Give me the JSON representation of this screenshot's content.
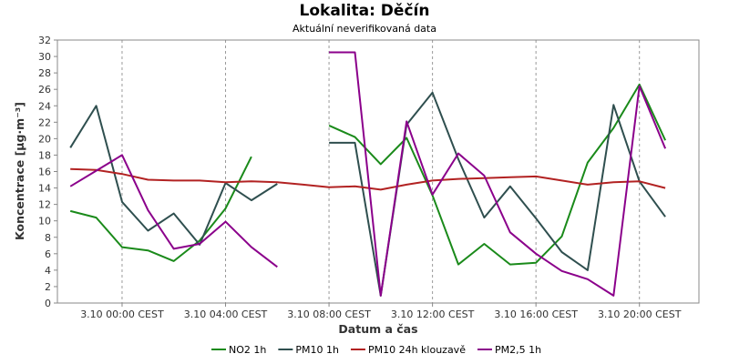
{
  "chart_data": {
    "type": "line",
    "title": "Lokalita: Děčín",
    "subtitle": "Aktuální neverifikovaná data",
    "xlabel": "Datum a čas",
    "ylabel": "Koncentrace [µg·m⁻³]",
    "ylim": [
      0,
      32
    ],
    "yticks": [
      0,
      2,
      4,
      6,
      8,
      10,
      12,
      14,
      16,
      18,
      20,
      22,
      24,
      26,
      28,
      30,
      32
    ],
    "x_hours": [
      -2,
      -1,
      0,
      1,
      2,
      3,
      4,
      5,
      6,
      7,
      8,
      9,
      10,
      11,
      12,
      13,
      14,
      15,
      16,
      17,
      18,
      19,
      20,
      21,
      22
    ],
    "xticks": [
      {
        "hour": 0,
        "label": "3.10 00:00 CEST"
      },
      {
        "hour": 4,
        "label": "3.10 04:00 CEST"
      },
      {
        "hour": 8,
        "label": "3.10 08:00 CEST"
      },
      {
        "hour": 12,
        "label": "3.10 12:00 CEST"
      },
      {
        "hour": 16,
        "label": "3.10 16:00 CEST"
      },
      {
        "hour": 20,
        "label": "3.10 20:00 CEST"
      }
    ],
    "xlim": [
      -2.5,
      22.3
    ],
    "grid": true,
    "legend_position": "bottom",
    "series": [
      {
        "name": "NO2 1h",
        "color": "#1a8a1a",
        "values": [
          11.2,
          10.4,
          6.8,
          6.4,
          5.1,
          7.6,
          11.5,
          17.8,
          null,
          null,
          21.6,
          20.2,
          16.9,
          20.1,
          13.1,
          4.7,
          7.2,
          4.7,
          4.9,
          8.1,
          17.1,
          21.3,
          26.6,
          19.8,
          null
        ]
      },
      {
        "name": "PM10 1h",
        "color": "#2f4f4f",
        "values": [
          18.9,
          24.0,
          12.3,
          8.8,
          10.9,
          7.1,
          14.6,
          12.5,
          14.5,
          null,
          19.5,
          19.5,
          0.9,
          21.7,
          25.6,
          17.5,
          10.4,
          14.2,
          10.3,
          6.2,
          4.0,
          24.1,
          14.8,
          10.5,
          null
        ]
      },
      {
        "name": "PM10 24h klouzavě",
        "color": "#b22222",
        "values": [
          16.3,
          16.2,
          15.7,
          15.0,
          14.9,
          14.9,
          14.7,
          14.8,
          14.7,
          14.4,
          14.1,
          14.2,
          13.8,
          14.4,
          14.9,
          15.1,
          15.2,
          15.3,
          15.4,
          14.9,
          14.4,
          14.7,
          14.8,
          14.0,
          null
        ]
      },
      {
        "name": "PM2,5 1h",
        "color": "#8b008b",
        "values": [
          14.2,
          16.1,
          18.0,
          11.3,
          6.6,
          7.2,
          9.9,
          6.8,
          4.4,
          null,
          30.5,
          30.5,
          0.9,
          22.1,
          13.2,
          18.2,
          15.5,
          8.6,
          6.0,
          3.9,
          2.9,
          0.9,
          26.4,
          18.8,
          null
        ]
      }
    ]
  }
}
